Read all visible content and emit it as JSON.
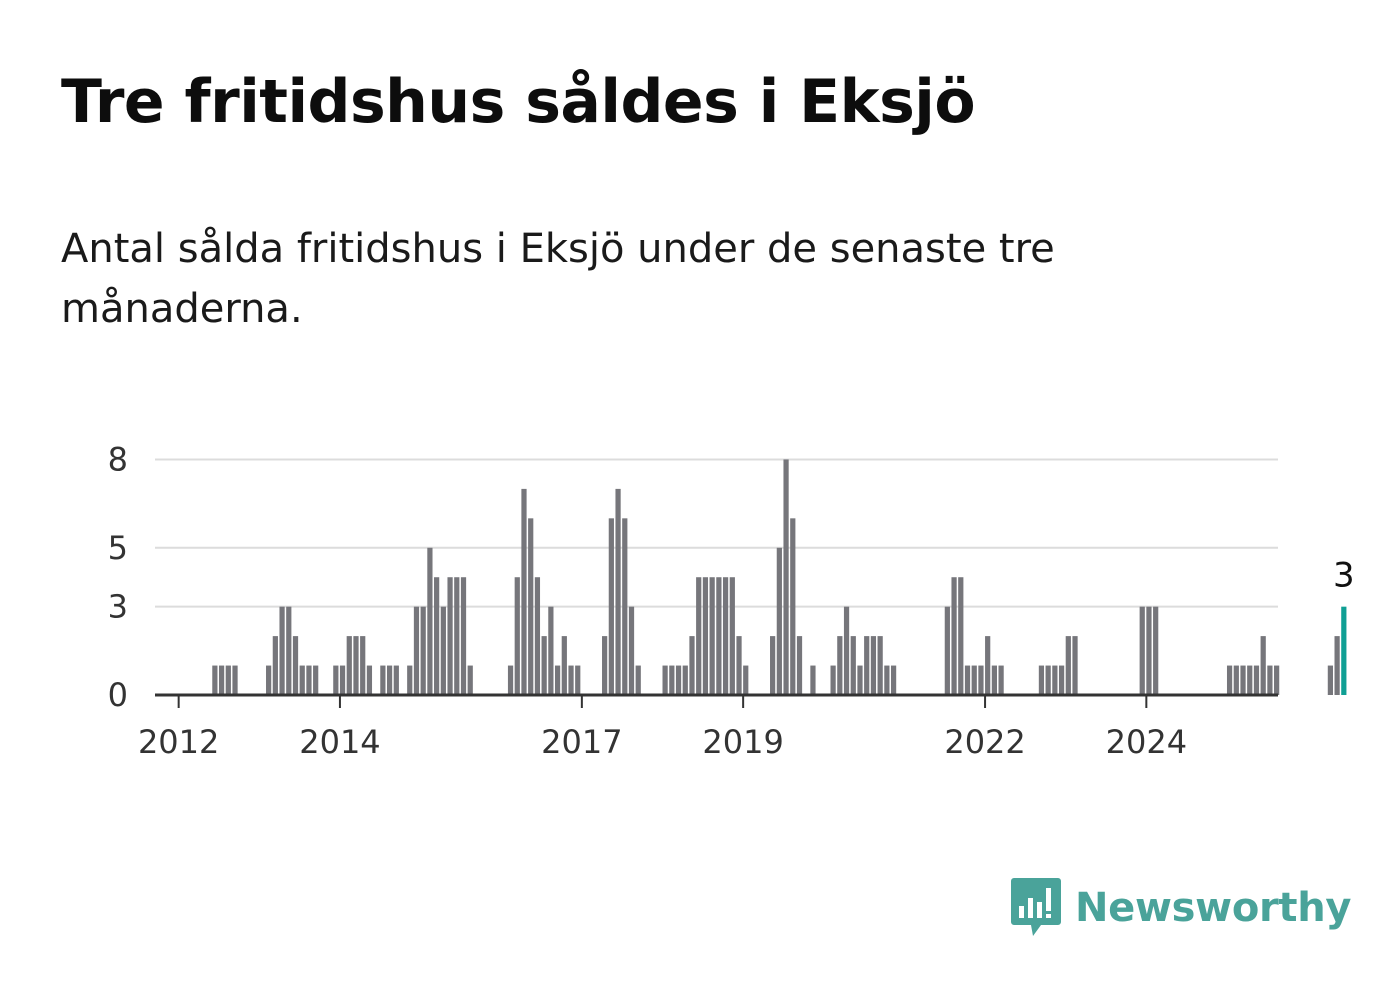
{
  "title": "Tre fritidshus såldes i Eksjö",
  "subtitle": "Antal sålda fritidshus i Eksjö under de senaste tre månaderna.",
  "logo": {
    "text": "Newsworthy",
    "icon": "newsworthy-chat-bars-icon",
    "color": "#4aa39a"
  },
  "chart_data": {
    "type": "bar",
    "x_start": "2011-10",
    "x_step": "1 month",
    "x_tick_labels": [
      "2012",
      "2014",
      "2017",
      "2019",
      "2022",
      "2024"
    ],
    "y_tick_labels": [
      "0",
      "3",
      "5",
      "8"
    ],
    "ylim": [
      0,
      9
    ],
    "grid": true,
    "bar_color": "#76767b",
    "highlight_color": "#0f9f94",
    "last_value_label": "3",
    "values": [
      0,
      0,
      0,
      0,
      0,
      0,
      0,
      0,
      1,
      1,
      1,
      1,
      0,
      0,
      0,
      0,
      1,
      2,
      3,
      3,
      2,
      1,
      1,
      1,
      0,
      0,
      1,
      1,
      2,
      2,
      2,
      1,
      0,
      1,
      1,
      1,
      0,
      1,
      3,
      3,
      5,
      4,
      3,
      4,
      4,
      4,
      1,
      0,
      0,
      0,
      0,
      0,
      1,
      4,
      7,
      6,
      4,
      2,
      3,
      1,
      2,
      1,
      1,
      0,
      0,
      0,
      2,
      6,
      7,
      6,
      3,
      1,
      0,
      0,
      0,
      1,
      1,
      1,
      1,
      2,
      4,
      4,
      4,
      4,
      4,
      4,
      2,
      1,
      0,
      0,
      0,
      2,
      5,
      8,
      6,
      2,
      0,
      1,
      0,
      0,
      1,
      2,
      3,
      2,
      1,
      2,
      2,
      2,
      1,
      1,
      0,
      0,
      0,
      0,
      0,
      0,
      0,
      3,
      4,
      4,
      1,
      1,
      1,
      2,
      1,
      1,
      0,
      0,
      0,
      0,
      0,
      1,
      1,
      1,
      1,
      2,
      2,
      0,
      0,
      0,
      0,
      0,
      0,
      0,
      0,
      0,
      3,
      3,
      3,
      0,
      0,
      0,
      0,
      0,
      0,
      0,
      0,
      0,
      0,
      1,
      1,
      1,
      1,
      1,
      2,
      1,
      1,
      0,
      0,
      0,
      0,
      0,
      0,
      0,
      1,
      2,
      3
    ]
  }
}
